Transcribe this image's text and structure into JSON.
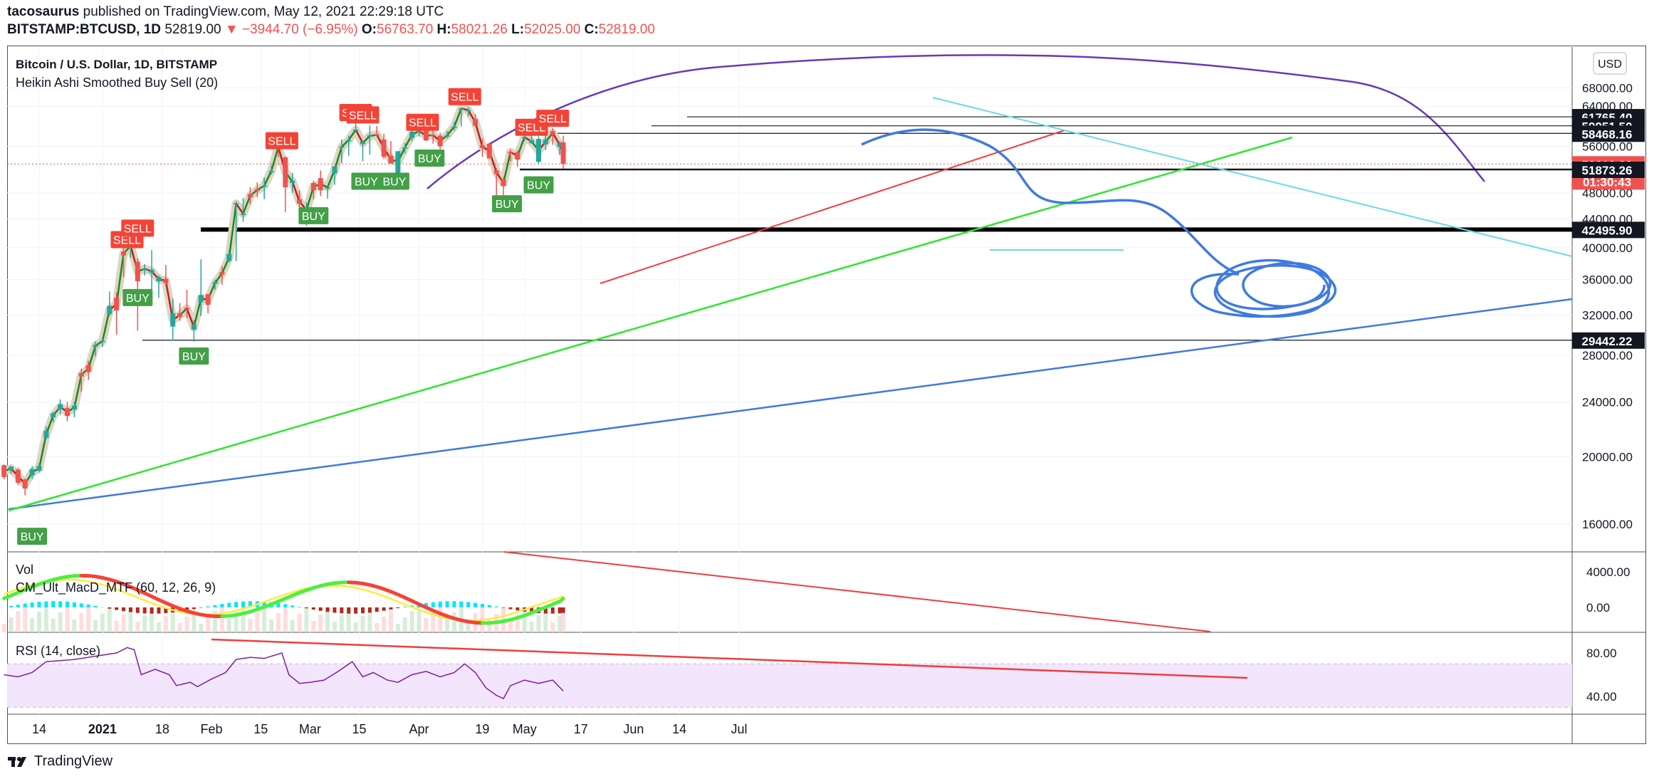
{
  "header": {
    "publisher": "tacosaurus",
    "published_text": " published on TradingView.com, May 12, 2021 22:29:18 UTC",
    "symbol": "BITSTAMP:BTCUSD, 1D",
    "last": "52819.00",
    "change": "▼ −3944.70 (−6.95%)",
    "o_label": "O:",
    "o_value": "56763.70",
    "h_label": "H:",
    "h_value": "58021.26",
    "l_label": "L:",
    "l_value": "52025.00",
    "c_label": "C:",
    "c_value": "52819.00"
  },
  "pane_main": {
    "title": "Bitcoin / U.S. Dollar, 1D, BITSTAMP",
    "indicator": "Heikin Ashi Smoothed Buy Sell  (20)",
    "currency": "USD"
  },
  "pane_macd": {
    "vol_label": "Vol",
    "macd_label": "CM_Ult_MacD_MTF (60, 12, 26, 9)"
  },
  "pane_rsi": {
    "label": "RSI (14, close)"
  },
  "footer": {
    "brand": "TradingView"
  },
  "colors": {
    "up": "#26a69a",
    "down": "#ef5350",
    "fill": "#f3e5fc",
    "purple": "#673ab7",
    "lightblue": "#4dd0e1"
  },
  "chart_data": [
    {
      "type": "candlestick",
      "title": "Bitcoin / U.S. Dollar, 1D, BITSTAMP",
      "y_scale": "log",
      "ylim": [
        14500,
        69000
      ],
      "price_ticks": [
        "68000.00",
        "64000.00",
        "56000.00",
        "48000.00",
        "44000.00",
        "40000.00",
        "36000.00",
        "32000.00",
        "28000.00",
        "24000.00",
        "20000.00",
        "16000.00"
      ],
      "x_ticks": [
        "14",
        "2021",
        "18",
        "Feb",
        "15",
        "Mar",
        "15",
        "Apr",
        "19",
        "May",
        "17",
        "Jun",
        "14",
        "Jul"
      ],
      "price_labels": [
        {
          "value": 61765.4,
          "text": "61765.40",
          "style": "dark"
        },
        {
          "value": 59951.5,
          "text": "59951.50",
          "style": "dark"
        },
        {
          "value": 58468.16,
          "text": "58468.16",
          "style": "dark"
        },
        {
          "value": 52819.0,
          "text": "52819.00",
          "style": "red"
        },
        {
          "value": 52819.0,
          "text": "01:30:43",
          "style": "red-sub"
        },
        {
          "value": 51873.26,
          "text": "51873.26",
          "style": "dark"
        },
        {
          "value": 42495.9,
          "text": "42495.90",
          "style": "dark"
        },
        {
          "value": 29442.22,
          "text": "29442.22",
          "style": "dark"
        }
      ],
      "signals": [
        {
          "text": "BUY",
          "date": "2020-12-12",
          "price": 15400
        },
        {
          "text": "SELL",
          "date": "2021-01-08",
          "price": 41200
        },
        {
          "text": "SELL",
          "date": "2021-01-11",
          "price": 42800
        },
        {
          "text": "BUY",
          "date": "2021-01-11",
          "price": 34000
        },
        {
          "text": "BUY",
          "date": "2021-01-27",
          "price": 28000
        },
        {
          "text": "SELL",
          "date": "2021-02-21",
          "price": 57200
        },
        {
          "text": "BUY",
          "date": "2021-03-02",
          "price": 44600
        },
        {
          "text": "SELL",
          "date": "2021-03-14",
          "price": 62800
        },
        {
          "text": "SELL",
          "date": "2021-03-16",
          "price": 62300
        },
        {
          "text": "BUY",
          "date": "2021-03-17",
          "price": 50000
        },
        {
          "text": "BUY",
          "date": "2021-03-25",
          "price": 50000
        },
        {
          "text": "SELL",
          "date": "2021-04-02",
          "price": 60800
        },
        {
          "text": "BUY",
          "date": "2021-04-04",
          "price": 54000
        },
        {
          "text": "SELL",
          "date": "2021-04-14",
          "price": 66200
        },
        {
          "text": "BUY",
          "date": "2021-04-26",
          "price": 46400
        },
        {
          "text": "SELL",
          "date": "2021-05-03",
          "price": 59800
        },
        {
          "text": "BUY",
          "date": "2021-05-05",
          "price": 49400
        },
        {
          "text": "SELL",
          "date": "2021-05-09",
          "price": 61600
        }
      ],
      "candles": [
        [
          "2020-12-04",
          19450,
          19500,
          18560,
          18700
        ],
        [
          "2020-12-06",
          19120,
          19400,
          18900,
          19350
        ],
        [
          "2020-12-08",
          19170,
          19300,
          18200,
          18350
        ],
        [
          "2020-12-10",
          18550,
          18600,
          17600,
          18000
        ],
        [
          "2020-12-12",
          18800,
          19400,
          18600,
          19200
        ],
        [
          "2020-12-14",
          19100,
          19600,
          19000,
          19400
        ],
        [
          "2020-12-16",
          21300,
          22100,
          21200,
          21800
        ],
        [
          "2020-12-18",
          22800,
          23200,
          22400,
          23100
        ],
        [
          "2020-12-20",
          23400,
          24200,
          23000,
          23800
        ],
        [
          "2020-12-22",
          23500,
          24000,
          22500,
          22900
        ],
        [
          "2020-12-24",
          23400,
          24000,
          22800,
          23700
        ],
        [
          "2020-12-26",
          26400,
          26800,
          24800,
          26100
        ],
        [
          "2020-12-28",
          27100,
          27500,
          25800,
          26500
        ],
        [
          "2020-12-30",
          28800,
          29300,
          27900,
          29000
        ],
        [
          "2021-01-01",
          29300,
          29700,
          28800,
          29400
        ],
        [
          "2021-01-03",
          32100,
          34600,
          31900,
          33000
        ],
        [
          "2021-01-05",
          33900,
          34500,
          30000,
          32500
        ],
        [
          "2021-01-07",
          39500,
          40300,
          36300,
          39000
        ],
        [
          "2021-01-09",
          40000,
          41300,
          38700,
          40500
        ],
        [
          "2021-01-11",
          38200,
          38600,
          30400,
          35800
        ],
        [
          "2021-01-13",
          37300,
          37900,
          36500,
          37300
        ],
        [
          "2021-01-15",
          36800,
          39700,
          34300,
          37200
        ],
        [
          "2021-01-17",
          35800,
          36500,
          33900,
          36300
        ],
        [
          "2021-01-19",
          36100,
          37800,
          35200,
          35600
        ],
        [
          "2021-01-21",
          30800,
          33800,
          29400,
          32200
        ],
        [
          "2021-01-23",
          32200,
          33300,
          31400,
          31800
        ],
        [
          "2021-01-25",
          32800,
          34800,
          31700,
          32600
        ],
        [
          "2021-01-27",
          30500,
          31500,
          29300,
          31000
        ],
        [
          "2021-01-29",
          33400,
          38500,
          31900,
          34200
        ],
        [
          "2021-01-31",
          34300,
          34300,
          32200,
          33100
        ],
        [
          "2021-02-02",
          35500,
          36000,
          34800,
          35700
        ],
        [
          "2021-02-04",
          36900,
          37600,
          35400,
          36600
        ],
        [
          "2021-02-06",
          38300,
          39700,
          38100,
          39200
        ],
        [
          "2021-02-08",
          46200,
          46700,
          38300,
          46400
        ],
        [
          "2021-02-10",
          44800,
          47200,
          43600,
          44800
        ],
        [
          "2021-02-12",
          47800,
          48900,
          46200,
          47300
        ],
        [
          "2021-02-14",
          48600,
          49700,
          47300,
          48300
        ],
        [
          "2021-02-16",
          49100,
          50500,
          47000,
          49200
        ],
        [
          "2021-02-18",
          51600,
          52500,
          51000,
          51600
        ],
        [
          "2021-02-20",
          56000,
          57500,
          54000,
          55800
        ],
        [
          "2021-02-22",
          54000,
          54200,
          45000,
          48900
        ],
        [
          "2021-02-24",
          49600,
          51300,
          48000,
          50000
        ],
        [
          "2021-02-26",
          47000,
          48400,
          44100,
          46300
        ],
        [
          "2021-02-28",
          45200,
          46500,
          43000,
          45500
        ],
        [
          "2021-03-02",
          49600,
          50000,
          47000,
          48400
        ],
        [
          "2021-03-04",
          50400,
          51700,
          47500,
          48400
        ],
        [
          "2021-03-06",
          48900,
          49200,
          47100,
          48900
        ],
        [
          "2021-03-08",
          51200,
          52400,
          49300,
          52400
        ],
        [
          "2021-03-10",
          55800,
          57300,
          53000,
          56000
        ],
        [
          "2021-03-12",
          57200,
          58000,
          54300,
          57200
        ],
        [
          "2021-03-14",
          59100,
          61700,
          59000,
          59200
        ],
        [
          "2021-03-16",
          56400,
          56900,
          53300,
          56900
        ],
        [
          "2021-03-18",
          57800,
          60000,
          54500,
          58100
        ],
        [
          "2021-03-20",
          58300,
          59900,
          57800,
          58100
        ],
        [
          "2021-03-22",
          57300,
          58400,
          53700,
          54100
        ],
        [
          "2021-03-24",
          54300,
          57000,
          52900,
          52900
        ],
        [
          "2021-03-26",
          51300,
          55100,
          51200,
          55100
        ],
        [
          "2021-03-28",
          55800,
          56600,
          54700,
          55800
        ],
        [
          "2021-03-30",
          57600,
          59300,
          57000,
          58800
        ],
        [
          "2021-04-01",
          58800,
          59800,
          57900,
          59000
        ],
        [
          "2021-04-03",
          59000,
          59600,
          57000,
          57100
        ],
        [
          "2021-04-05",
          58200,
          59000,
          56500,
          58000
        ],
        [
          "2021-04-07",
          58000,
          58600,
          55500,
          56000
        ],
        [
          "2021-04-09",
          58100,
          58900,
          57500,
          58100
        ],
        [
          "2021-04-11",
          59800,
          60700,
          59000,
          59800
        ],
        [
          "2021-04-13",
          63500,
          63700,
          59800,
          63500
        ],
        [
          "2021-04-15",
          63100,
          63800,
          61900,
          63200
        ],
        [
          "2021-04-17",
          61300,
          62400,
          59800,
          60000
        ],
        [
          "2021-04-19",
          56200,
          57500,
          54100,
          55700
        ],
        [
          "2021-04-21",
          56500,
          56700,
          53800,
          53800
        ],
        [
          "2021-04-23",
          51700,
          52100,
          47000,
          51100
        ],
        [
          "2021-04-25",
          50100,
          50600,
          47100,
          49100
        ],
        [
          "2021-04-27",
          55000,
          55400,
          53300,
          54900
        ],
        [
          "2021-04-29",
          54900,
          55200,
          52300,
          53600
        ],
        [
          "2021-05-01",
          57700,
          58500,
          57000,
          57800
        ],
        [
          "2021-05-03",
          56600,
          58900,
          56500,
          57200
        ],
        [
          "2021-05-05",
          53200,
          57900,
          52900,
          57400
        ],
        [
          "2021-05-07",
          56400,
          58600,
          55300,
          57300
        ],
        [
          "2021-05-09",
          58900,
          59500,
          56300,
          58200
        ],
        [
          "2021-05-11",
          55900,
          56900,
          54400,
          56700
        ],
        [
          "2021-05-12",
          56763.7,
          58021.26,
          52025,
          52819
        ]
      ]
    },
    {
      "type": "line",
      "title": "CM_Ult_MacD_MTF (60, 12, 26, 9)",
      "ylim": [
        -1200,
        5500
      ],
      "y_ticks": [
        "4000.00",
        "0.00"
      ]
    },
    {
      "type": "line",
      "title": "RSI (14, close)",
      "ylim": [
        30,
        90
      ],
      "y_ticks": [
        "80.00",
        "40.00"
      ],
      "series": [
        {
          "values": [
            [
              "2020-12-04",
              60
            ],
            [
              "2020-12-08",
              58
            ],
            [
              "2020-12-12",
              62
            ],
            [
              "2020-12-16",
              72
            ],
            [
              "2020-12-20",
              73
            ],
            [
              "2020-12-24",
              74
            ],
            [
              "2020-12-28",
              76
            ],
            [
              "2021-01-01",
              78
            ],
            [
              "2021-01-05",
              80
            ],
            [
              "2021-01-08",
              85
            ],
            [
              "2021-01-10",
              83
            ],
            [
              "2021-01-12",
              60
            ],
            [
              "2021-01-16",
              65
            ],
            [
              "2021-01-20",
              60
            ],
            [
              "2021-01-22",
              50
            ],
            [
              "2021-01-26",
              53
            ],
            [
              "2021-01-28",
              49
            ],
            [
              "2021-02-01",
              56
            ],
            [
              "2021-02-05",
              62
            ],
            [
              "2021-02-08",
              74
            ],
            [
              "2021-02-12",
              76
            ],
            [
              "2021-02-16",
              75
            ],
            [
              "2021-02-21",
              80
            ],
            [
              "2021-02-23",
              60
            ],
            [
              "2021-02-26",
              52
            ],
            [
              "2021-03-01",
              53
            ],
            [
              "2021-03-05",
              55
            ],
            [
              "2021-03-09",
              63
            ],
            [
              "2021-03-13",
              72
            ],
            [
              "2021-03-16",
              58
            ],
            [
              "2021-03-19",
              62
            ],
            [
              "2021-03-23",
              55
            ],
            [
              "2021-03-26",
              53
            ],
            [
              "2021-03-30",
              60
            ],
            [
              "2021-04-03",
              63
            ],
            [
              "2021-04-07",
              58
            ],
            [
              "2021-04-11",
              62
            ],
            [
              "2021-04-14",
              70
            ],
            [
              "2021-04-17",
              62
            ],
            [
              "2021-04-20",
              48
            ],
            [
              "2021-04-23",
              41
            ],
            [
              "2021-04-25",
              38
            ],
            [
              "2021-04-27",
              50
            ],
            [
              "2021-05-01",
              55
            ],
            [
              "2021-05-05",
              52
            ],
            [
              "2021-05-09",
              55
            ],
            [
              "2021-05-12",
              45
            ]
          ]
        }
      ]
    }
  ]
}
